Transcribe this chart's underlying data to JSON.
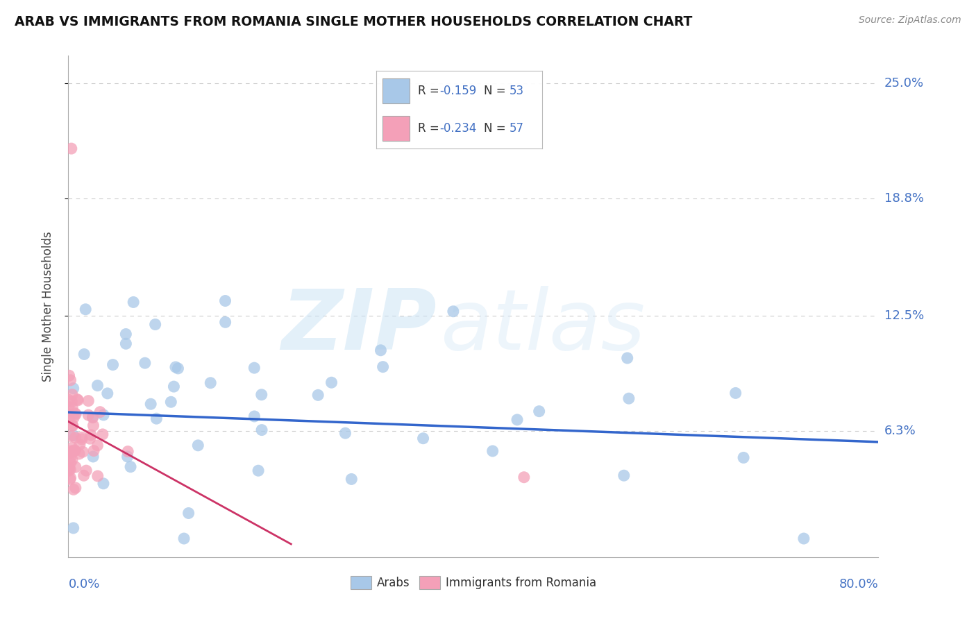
{
  "title": "ARAB VS IMMIGRANTS FROM ROMANIA SINGLE MOTHER HOUSEHOLDS CORRELATION CHART",
  "source": "Source: ZipAtlas.com",
  "ylabel": "Single Mother Households",
  "x_min": 0.0,
  "x_max": 0.8,
  "y_min": -0.005,
  "y_max": 0.265,
  "watermark_zip": "ZIP",
  "watermark_atlas": "atlas",
  "y_tick_vals": [
    0.063,
    0.125,
    0.188,
    0.25
  ],
  "y_tick_labels": [
    "6.3%",
    "12.5%",
    "18.8%",
    "25.0%"
  ],
  "color_arab": "#a8c8e8",
  "color_romania": "#f4a0b8",
  "color_arab_line": "#3366cc",
  "color_romania_line": "#cc3366",
  "color_text_blue": "#4472c4",
  "color_grid": "#cccccc",
  "arab_line_intercept": 0.073,
  "arab_line_slope": -0.02,
  "romania_line_intercept": 0.068,
  "romania_line_slope": -0.3,
  "romania_line_xmax": 0.22,
  "legend_r1_val": "-0.159",
  "legend_n1_val": "53",
  "legend_r2_val": "-0.234",
  "legend_n2_val": "57"
}
